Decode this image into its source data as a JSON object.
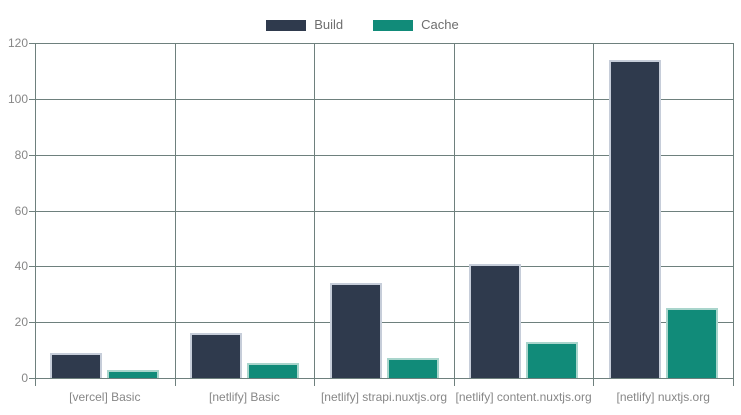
{
  "chart_data": {
    "type": "bar",
    "title": "",
    "xlabel": "",
    "ylabel": "",
    "categories": [
      "[vercel] Basic",
      "[netlify] Basic",
      "[netlify] strapi.nuxtjs.org",
      "[netlify] content.nuxtjs.org",
      "[netlify] nuxtjs.org"
    ],
    "series": [
      {
        "name": "Build",
        "color": "#2f3a4d",
        "border_color": "#c6cdd9",
        "values": [
          9,
          16,
          34,
          41,
          114
        ]
      },
      {
        "name": "Cache",
        "color": "#118b79",
        "border_color": "#a9d5cc",
        "values": [
          3,
          5.5,
          7,
          13,
          25
        ]
      }
    ],
    "ylim": [
      0,
      120
    ],
    "yticks": [
      0,
      20,
      40,
      60,
      80,
      100,
      120
    ],
    "grid": true,
    "legend_position": "top"
  },
  "colors": {
    "background": "#ffffff",
    "grid": "#6e807d",
    "axis_tick_label": "#878787",
    "legend_text": "#6e6e6e"
  }
}
